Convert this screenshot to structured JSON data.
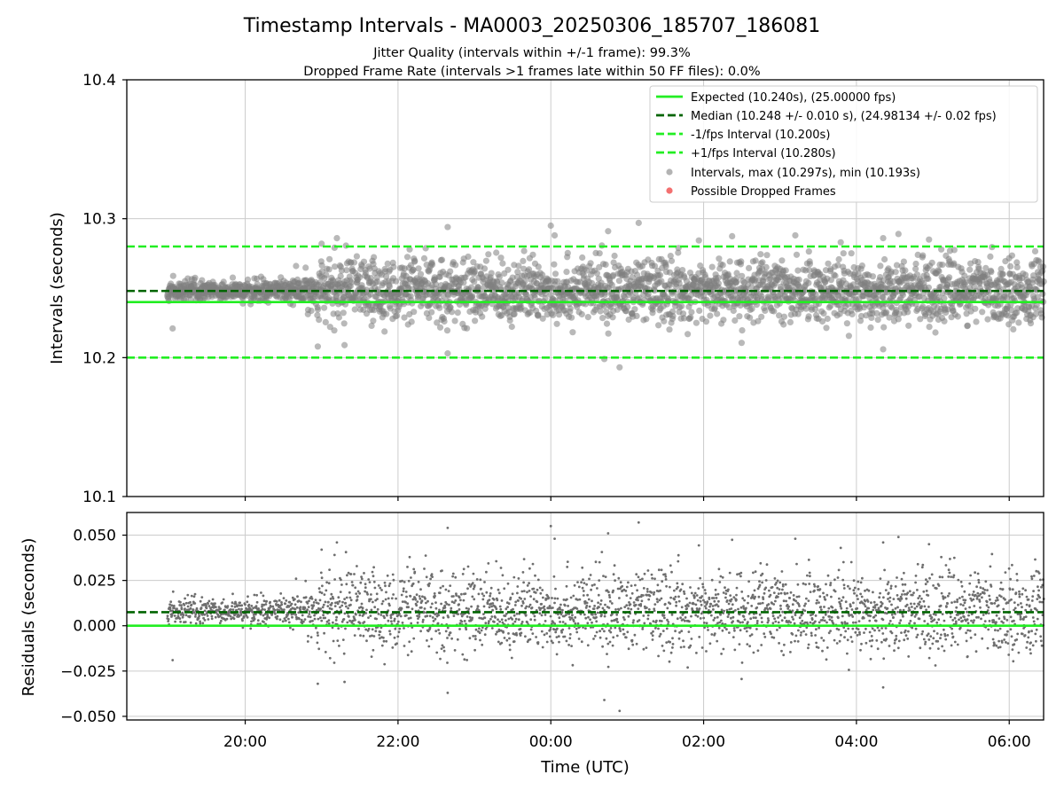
{
  "chart_data": [
    {
      "type": "scatter",
      "title": "Timestamp Intervals - MA0003_20250306_185707_186081",
      "subtitle_lines": [
        "Jitter Quality (intervals within +/-1 frame): 99.3%",
        "Dropped Frame Rate (intervals >1 frames late within 50 FF files): 0.0%"
      ],
      "xlabel": "",
      "ylabel": "Intervals (seconds)",
      "ylim": [
        10.1,
        10.4
      ],
      "yticks": [
        "10.1",
        "10.2",
        "10.3",
        "10.4"
      ],
      "xlim_hours": [
        18.45,
        30.45
      ],
      "xticks": [
        {
          "value": 20,
          "label": "20:00"
        },
        {
          "value": 22,
          "label": "22:00"
        },
        {
          "value": 24,
          "label": "00:00"
        },
        {
          "value": 26,
          "label": "02:00"
        },
        {
          "value": 28,
          "label": "04:00"
        },
        {
          "value": 30,
          "label": "06:00"
        }
      ],
      "grid": true,
      "legend_position": "upper-right",
      "lines": [
        {
          "name": "Expected (10.240s), (25.00000 fps)",
          "y": 10.24,
          "style": "solid",
          "color": "#22ee22"
        },
        {
          "name": "Median (10.248 +/- 0.010 s), (24.98134 +/- 0.02 fps)",
          "y": 10.248,
          "style": "dashed",
          "color": "#006400"
        },
        {
          "name": "-1/fps Interval (10.200s)",
          "y": 10.2,
          "style": "dashed",
          "color": "#22ee22"
        },
        {
          "name": "+1/fps Interval (10.280s)",
          "y": 10.28,
          "style": "dashed",
          "color": "#22ee22"
        }
      ],
      "series": [
        {
          "name": "Intervals, max (10.297s), min (10.193s)",
          "marker": "circle",
          "color": "#808080",
          "max": 10.297,
          "min": 10.193
        },
        {
          "name": "Possible Dropped Frames",
          "marker": "circle",
          "color": "#ee3333",
          "values": []
        }
      ]
    },
    {
      "type": "scatter",
      "title": "",
      "xlabel": "Time (UTC)",
      "ylabel": "Residuals (seconds)",
      "ylim": [
        -0.052,
        0.0625
      ],
      "yticks": [
        {
          "value": 0.05,
          "label": "0.050"
        },
        {
          "value": 0.025,
          "label": "0.025"
        },
        {
          "value": 0.0,
          "label": "0.000"
        },
        {
          "value": -0.025,
          "label": "−0.025"
        },
        {
          "value": -0.05,
          "label": "−0.050"
        }
      ],
      "xticks": [
        {
          "value": 20,
          "label": "20:00"
        },
        {
          "value": 22,
          "label": "22:00"
        },
        {
          "value": 24,
          "label": "00:00"
        },
        {
          "value": 26,
          "label": "02:00"
        },
        {
          "value": 28,
          "label": "04:00"
        },
        {
          "value": 30,
          "label": "06:00"
        }
      ],
      "grid": true,
      "lines": [
        {
          "y": 0.0,
          "style": "solid",
          "color": "#22ee22"
        },
        {
          "y": 0.0075,
          "style": "dashed",
          "color": "#006400"
        }
      ],
      "outliers": [
        {
          "x": 24.0,
          "y": 0.055
        },
        {
          "x": 24.05,
          "y": 0.048
        },
        {
          "x": 25.15,
          "y": 0.057
        },
        {
          "x": 24.75,
          "y": 0.051
        },
        {
          "x": 22.65,
          "y": 0.054
        },
        {
          "x": 24.9,
          "y": -0.047
        },
        {
          "x": 28.55,
          "y": 0.049
        },
        {
          "x": 28.35,
          "y": 0.046
        },
        {
          "x": 21.2,
          "y": 0.046
        },
        {
          "x": 21.0,
          "y": 0.042
        },
        {
          "x": 28.95,
          "y": 0.045
        },
        {
          "x": 27.2,
          "y": 0.048
        },
        {
          "x": 24.7,
          "y": -0.041
        },
        {
          "x": 20.95,
          "y": -0.032
        },
        {
          "x": 21.3,
          "y": -0.031
        },
        {
          "x": 19.05,
          "y": -0.019
        },
        {
          "x": 28.35,
          "y": -0.034
        },
        {
          "x": 22.65,
          "y": -0.037
        }
      ],
      "noise_std": 0.011
    }
  ]
}
